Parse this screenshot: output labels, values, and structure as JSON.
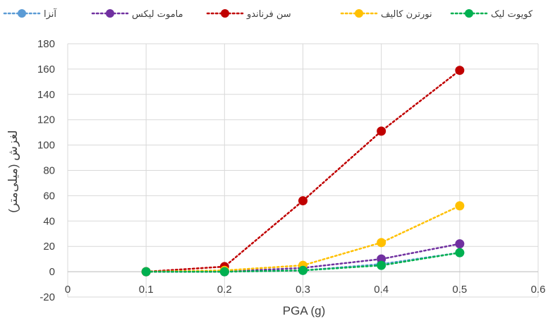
{
  "chart_data": {
    "type": "line",
    "xlabel": "PGA (g)",
    "ylabel": "لغزش (میلی‌متر)",
    "xlim": [
      0,
      0.6
    ],
    "ylim": [
      -20,
      180
    ],
    "xticks": [
      0,
      0.1,
      0.2,
      0.3,
      0.4,
      0.5,
      0.6
    ],
    "yticks": [
      -20,
      0,
      20,
      40,
      60,
      80,
      100,
      120,
      140,
      160,
      180
    ],
    "grid": true,
    "legend_position": "top",
    "series": [
      {
        "name": "آنزا",
        "color": "#5b9bd5",
        "x": [
          0.1,
          0.2,
          0.3,
          0.4,
          0.5
        ],
        "y": [
          0,
          0,
          1,
          6,
          15
        ]
      },
      {
        "name": "ماموت لیکس",
        "color": "#7030a0",
        "x": [
          0.1,
          0.2,
          0.3,
          0.4,
          0.5
        ],
        "y": [
          0,
          0,
          3,
          10,
          22
        ]
      },
      {
        "name": "سن فرناندو",
        "color": "#c00000",
        "x": [
          0.1,
          0.2,
          0.3,
          0.4,
          0.5
        ],
        "y": [
          0,
          4,
          56,
          111,
          159
        ]
      },
      {
        "name": "نورترن کالیف",
        "color": "#ffc000",
        "x": [
          0.1,
          0.2,
          0.3,
          0.4,
          0.5
        ],
        "y": [
          0,
          1,
          5,
          23,
          52
        ]
      },
      {
        "name": "کویوت لیک",
        "color": "#00b050",
        "x": [
          0.1,
          0.2,
          0.3,
          0.4,
          0.5
        ],
        "y": [
          0,
          0,
          1,
          5,
          15
        ]
      }
    ]
  }
}
